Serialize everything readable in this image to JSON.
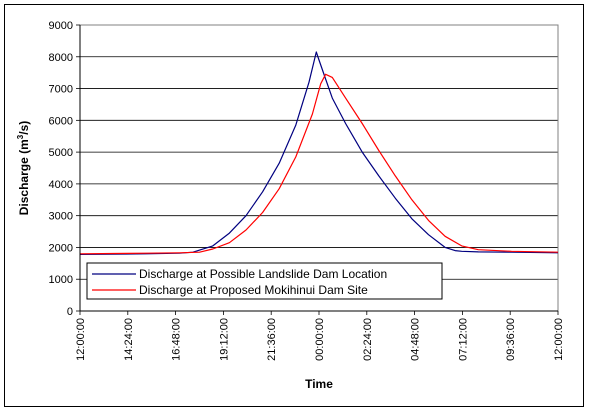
{
  "chart_data": {
    "type": "line",
    "title": "",
    "xlabel": "Time",
    "ylabel_main": "Discharge (m",
    "ylabel_sup": "3",
    "ylabel_tail": "/s)",
    "ylim": [
      0,
      9000
    ],
    "yticks": [
      0,
      1000,
      2000,
      3000,
      4000,
      5000,
      6000,
      7000,
      8000,
      9000
    ],
    "xlim": [
      0,
      1440
    ],
    "xticks": [
      {
        "x": 0,
        "label": "12:00:00"
      },
      {
        "x": 144,
        "label": "14:24:00"
      },
      {
        "x": 288,
        "label": "16:48:00"
      },
      {
        "x": 432,
        "label": "19:12:00"
      },
      {
        "x": 576,
        "label": "21:36:00"
      },
      {
        "x": 720,
        "label": "00:00:00"
      },
      {
        "x": 864,
        "label": "02:24:00"
      },
      {
        "x": 1008,
        "label": "04:48:00"
      },
      {
        "x": 1152,
        "label": "07:12:00"
      },
      {
        "x": 1296,
        "label": "09:36:00"
      },
      {
        "x": 1440,
        "label": "12:00:00"
      }
    ],
    "grid": "horizontal",
    "legend": "bottom-left",
    "series": [
      {
        "name": "Discharge at Possible Landslide Dam Location",
        "color": "#000080",
        "x": [
          0,
          100,
          200,
          300,
          340,
          400,
          450,
          500,
          550,
          600,
          650,
          690,
          712,
          720,
          740,
          760,
          800,
          850,
          900,
          950,
          1000,
          1050,
          1100,
          1130,
          1150,
          1200,
          1300,
          1440
        ],
        "y": [
          1780,
          1790,
          1800,
          1820,
          1850,
          2050,
          2450,
          3000,
          3750,
          4650,
          5850,
          7200,
          8150,
          7900,
          7300,
          6700,
          5900,
          5000,
          4250,
          3550,
          2900,
          2400,
          2000,
          1900,
          1880,
          1860,
          1850,
          1830
        ]
      },
      {
        "name": "Discharge at Proposed Mokihinui Dam Site",
        "color": "#ff0000",
        "x": [
          0,
          100,
          200,
          300,
          360,
          400,
          450,
          500,
          550,
          600,
          650,
          700,
          725,
          740,
          760,
          800,
          850,
          900,
          950,
          1000,
          1050,
          1100,
          1150,
          1200,
          1300,
          1440
        ],
        "y": [
          1800,
          1810,
          1820,
          1830,
          1850,
          1950,
          2150,
          2550,
          3100,
          3850,
          4850,
          6200,
          7150,
          7450,
          7350,
          6700,
          5900,
          5050,
          4250,
          3500,
          2850,
          2350,
          2050,
          1930,
          1880,
          1850
        ]
      }
    ]
  }
}
